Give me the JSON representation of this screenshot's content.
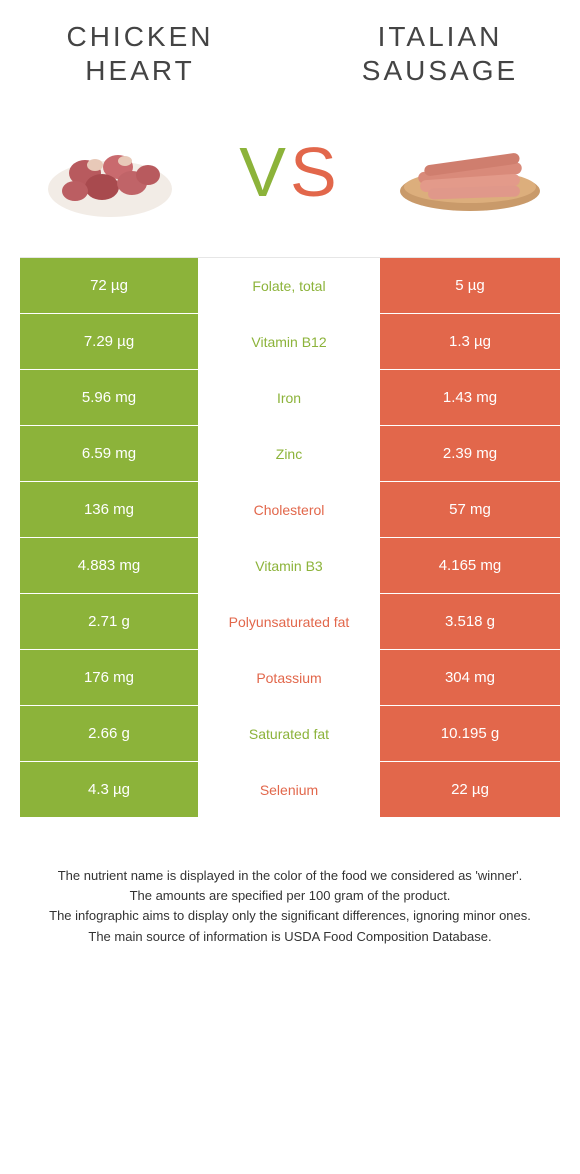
{
  "header": {
    "left_title": "CHICKEN HEART",
    "right_title": "ITALIAN SAUSAGE"
  },
  "vs": {
    "v": "V",
    "s": "S"
  },
  "colors": {
    "green": "#8cb33a",
    "orange": "#e2674b",
    "white": "#ffffff",
    "text": "#333333"
  },
  "rows": [
    {
      "nutrient": "Folate, total",
      "winner": "green",
      "left": "72 µg",
      "right": "5 µg"
    },
    {
      "nutrient": "Vitamin B12",
      "winner": "green",
      "left": "7.29 µg",
      "right": "1.3 µg"
    },
    {
      "nutrient": "Iron",
      "winner": "green",
      "left": "5.96 mg",
      "right": "1.43 mg"
    },
    {
      "nutrient": "Zinc",
      "winner": "green",
      "left": "6.59 mg",
      "right": "2.39 mg"
    },
    {
      "nutrient": "Cholesterol",
      "winner": "orange",
      "left": "136 mg",
      "right": "57 mg"
    },
    {
      "nutrient": "Vitamin B3",
      "winner": "green",
      "left": "4.883 mg",
      "right": "4.165 mg"
    },
    {
      "nutrient": "Polyunsaturated fat",
      "winner": "orange",
      "left": "2.71 g",
      "right": "3.518 g"
    },
    {
      "nutrient": "Potassium",
      "winner": "orange",
      "left": "176 mg",
      "right": "304 mg"
    },
    {
      "nutrient": "Saturated fat",
      "winner": "green",
      "left": "2.66 g",
      "right": "10.195 g"
    },
    {
      "nutrient": "Selenium",
      "winner": "orange",
      "left": "4.3 µg",
      "right": "22 µg"
    }
  ],
  "footnote": {
    "l1": "The nutrient name is displayed in the color of the food we considered as 'winner'.",
    "l2": "The amounts are specified per 100 gram of the product.",
    "l3": "The infographic aims to display only the significant differences, ignoring minor ones.",
    "l4": "The main source of information is USDA Food Composition Database."
  }
}
